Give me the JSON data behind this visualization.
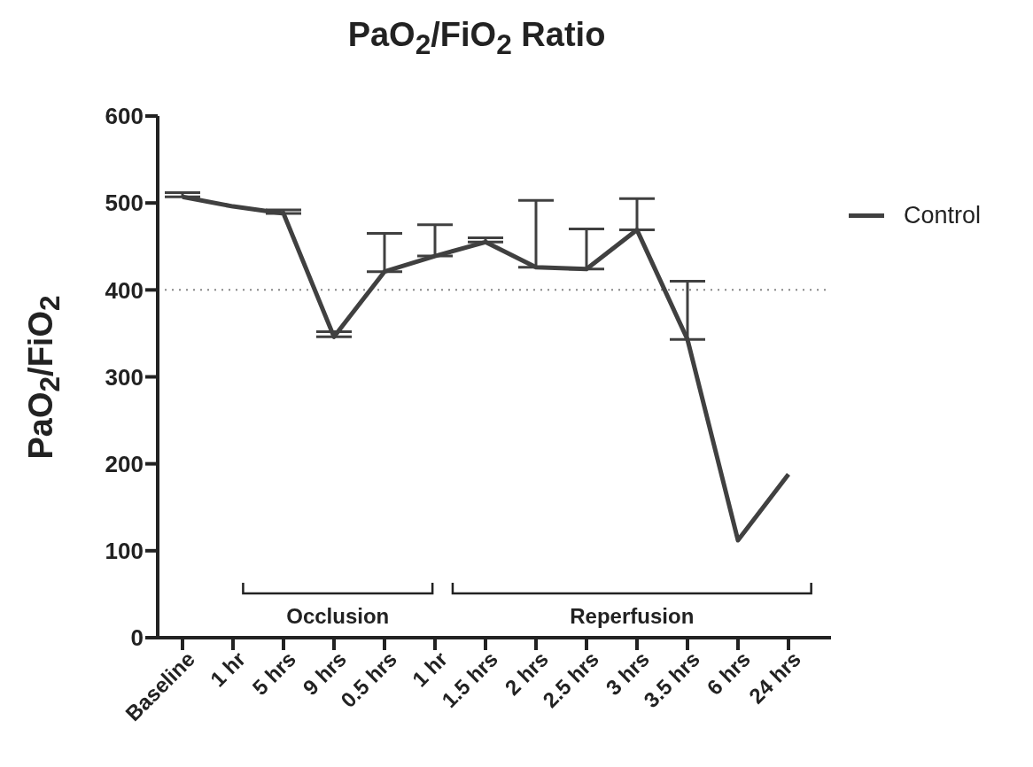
{
  "chart_data": {
    "type": "line",
    "title": "PaO$_{2}$/FiO$_{2}$ Ratio",
    "ylabel": "PaO$_{2}$/FiO$_{2}$",
    "categories": [
      "Baseline",
      "1 hr",
      "5 hrs",
      "9 hrs",
      "0.5 hrs",
      "1 hr",
      "1.5 hrs",
      "2 hrs",
      "2.5 hrs",
      "3 hrs",
      "3.5 hrs",
      "6 hrs",
      "24 hrs"
    ],
    "series": [
      {
        "name": "Control",
        "color": "#404040",
        "values": [
          507,
          496,
          488,
          346,
          421,
          439,
          455,
          426,
          424,
          469,
          343,
          112,
          188
        ],
        "errors": [
          [
            507,
            512
          ],
          null,
          [
            488,
            492
          ],
          [
            346,
            352
          ],
          [
            421,
            465
          ],
          [
            439,
            475
          ],
          [
            455,
            460
          ],
          [
            426,
            503
          ],
          [
            424,
            470
          ],
          [
            469,
            505
          ],
          [
            343,
            410
          ],
          null,
          null
        ]
      }
    ],
    "ylim": [
      0,
      600
    ],
    "yticks": [
      0,
      100,
      200,
      300,
      400,
      500,
      600
    ],
    "ref_lines": [
      {
        "axis": "y",
        "value": 400,
        "color": "#888888",
        "line_style": "dotted"
      }
    ],
    "annotations": [
      "Occlusion",
      "Reperfusion"
    ],
    "legend": "right",
    "marker": "none",
    "line_style": "solid"
  }
}
